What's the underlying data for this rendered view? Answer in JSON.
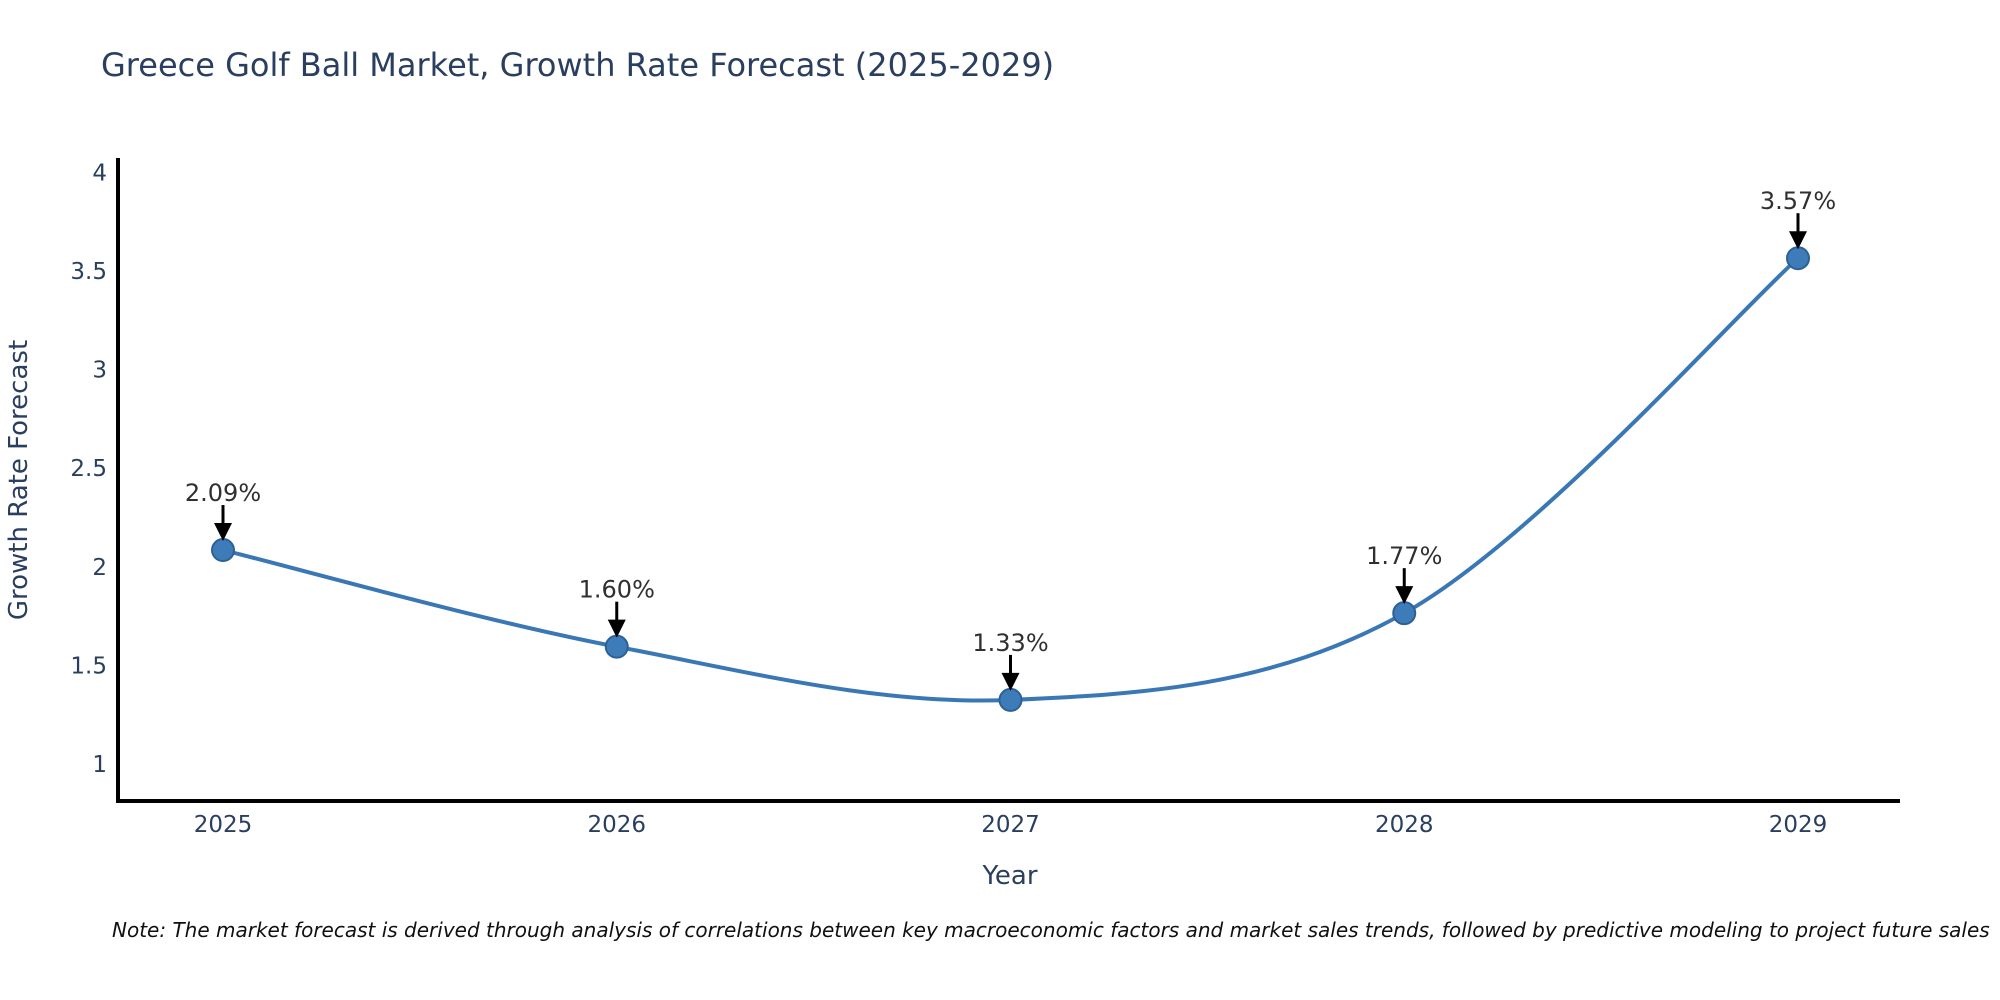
{
  "title": "Greece Golf Ball Market, Growth Rate Forecast (2025-2029)",
  "note": "Note: The market forecast is derived through analysis of correlations between key macroeconomic factors and market sales trends, followed by predictive modeling to project future sales",
  "chart_data": {
    "type": "line",
    "title": "Greece Golf Ball Market, Growth Rate Forecast (2025-2029)",
    "xlabel": "Year",
    "ylabel": "Growth Rate Forecast",
    "x": [
      "2025",
      "2026",
      "2027",
      "2028",
      "2029"
    ],
    "series": [
      {
        "name": "Growth Rate Forecast",
        "values": [
          2.09,
          1.6,
          1.33,
          1.77,
          3.57
        ],
        "point_labels": [
          "2.09%",
          "1.60%",
          "1.33%",
          "1.77%",
          "3.57%"
        ]
      }
    ],
    "y_ticks": [
      1,
      1.5,
      2,
      2.5,
      3,
      3.5,
      4
    ],
    "y_tick_labels": [
      "1",
      "1.5",
      "2",
      "2.5",
      "3",
      "3.5",
      "4"
    ],
    "ylim": [
      0.82,
      4.07
    ],
    "grid": false,
    "legend_position": "none",
    "line_smoothing": "spline",
    "annotation_style": "value label with downward arrow to point",
    "colors": {
      "line": "#3a78b5",
      "marker_fill": "#3d7cb8",
      "marker_edge": "#2d6196",
      "axis_line": "#000000",
      "axis_text": "#2a3f5f",
      "annotation_text": "#303030",
      "arrow": "#000000",
      "background": "#ffffff"
    }
  }
}
